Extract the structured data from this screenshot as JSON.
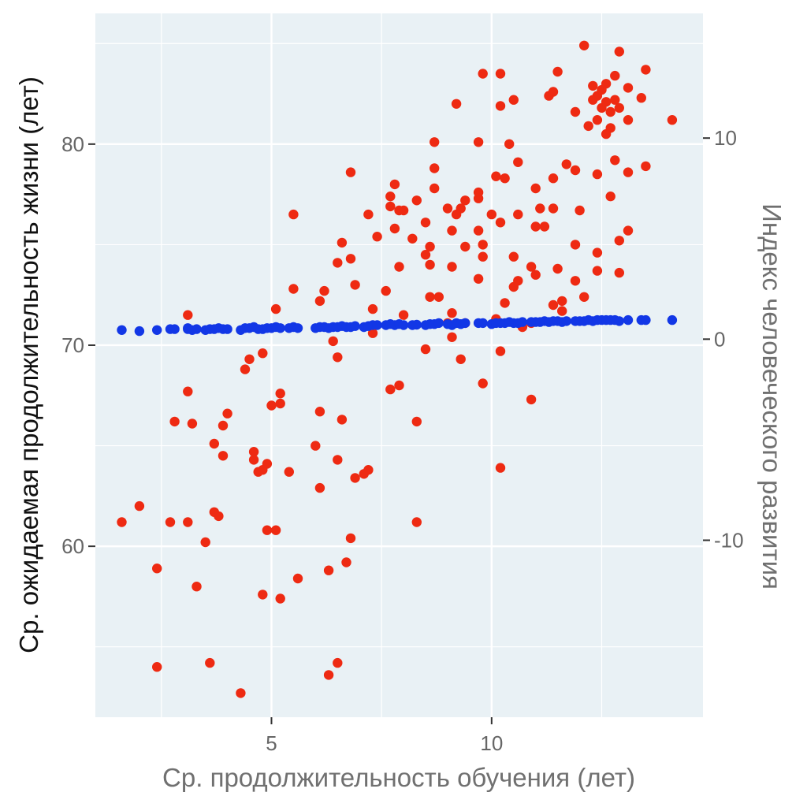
{
  "chart_data": {
    "type": "scatter",
    "title": "",
    "xlabel": "Ср. продолжительность обучения (лет)",
    "ylabel": "Ср. ожидаемая продолжительность жизни (лет)",
    "y2label": "Индекс человеческого развития",
    "xlim": [
      1.0,
      14.8
    ],
    "ylim": [
      51.5,
      86.5
    ],
    "y2lim": [
      -18.8,
      16.2
    ],
    "x_ticks": [
      5,
      10
    ],
    "y_ticks": [
      60,
      70,
      80
    ],
    "y2_ticks": [
      -10,
      0,
      10
    ],
    "x_tick_labels": [
      "5",
      "10"
    ],
    "y_tick_labels": [
      "60",
      "70",
      "80"
    ],
    "y2_tick_labels": [
      "-10",
      "0",
      "10"
    ],
    "grid": true,
    "legend": "none",
    "colors": {
      "panel_background": "#e9f1f5",
      "grid_line": "#ffffff",
      "life_expectancy": "#ee2a12",
      "hdi": "#1237e6",
      "tick_text": "#666666",
      "left_axis_title": "#111111",
      "right_axis_title": "#707070",
      "bottom_axis_title": "#707070"
    },
    "series": [
      {
        "axis": "left",
        "values": [
          [
            1.6,
            61.2
          ],
          [
            2.0,
            62.0
          ],
          [
            2.4,
            58.9
          ],
          [
            2.4,
            54.0
          ],
          [
            2.7,
            61.2
          ],
          [
            2.8,
            66.2
          ],
          [
            3.1,
            61.2
          ],
          [
            3.1,
            67.7
          ],
          [
            3.2,
            66.1
          ],
          [
            3.1,
            71.5
          ],
          [
            3.3,
            58.0
          ],
          [
            3.5,
            60.2
          ],
          [
            3.6,
            54.2
          ],
          [
            3.7,
            61.7
          ],
          [
            3.7,
            65.1
          ],
          [
            3.8,
            61.5
          ],
          [
            3.9,
            66.0
          ],
          [
            3.9,
            64.5
          ],
          [
            4.0,
            66.6
          ],
          [
            4.3,
            52.7
          ],
          [
            4.4,
            68.8
          ],
          [
            4.5,
            69.3
          ],
          [
            4.6,
            64.7
          ],
          [
            4.6,
            64.3
          ],
          [
            4.7,
            63.7
          ],
          [
            4.8,
            63.8
          ],
          [
            4.8,
            57.6
          ],
          [
            4.8,
            69.6
          ],
          [
            4.9,
            64.1
          ],
          [
            4.9,
            60.8
          ],
          [
            5.0,
            67.0
          ],
          [
            5.1,
            60.8
          ],
          [
            5.1,
            71.8
          ],
          [
            5.2,
            67.6
          ],
          [
            5.2,
            67.1
          ],
          [
            5.2,
            57.4
          ],
          [
            5.4,
            63.7
          ],
          [
            5.5,
            72.8
          ],
          [
            5.5,
            76.5
          ],
          [
            5.6,
            58.4
          ],
          [
            6.0,
            65.0
          ],
          [
            6.1,
            66.7
          ],
          [
            6.1,
            62.9
          ],
          [
            6.1,
            72.2
          ],
          [
            6.2,
            72.7
          ],
          [
            6.3,
            58.8
          ],
          [
            6.3,
            53.6
          ],
          [
            6.4,
            70.2
          ],
          [
            6.5,
            74.1
          ],
          [
            6.5,
            69.4
          ],
          [
            6.5,
            64.3
          ],
          [
            6.5,
            54.2
          ],
          [
            6.6,
            75.1
          ],
          [
            6.6,
            66.3
          ],
          [
            6.7,
            59.2
          ],
          [
            6.8,
            60.4
          ],
          [
            6.8,
            74.3
          ],
          [
            6.8,
            78.6
          ],
          [
            6.9,
            73.0
          ],
          [
            6.9,
            63.4
          ],
          [
            7.1,
            63.6
          ],
          [
            7.2,
            63.8
          ],
          [
            7.2,
            76.5
          ],
          [
            7.3,
            70.6
          ],
          [
            7.3,
            71.8
          ],
          [
            7.4,
            75.4
          ],
          [
            7.6,
            72.7
          ],
          [
            7.7,
            67.8
          ],
          [
            7.7,
            77.4
          ],
          [
            7.7,
            76.9
          ],
          [
            7.8,
            78.0
          ],
          [
            7.8,
            75.8
          ],
          [
            7.9,
            68.0
          ],
          [
            7.9,
            76.7
          ],
          [
            7.9,
            73.9
          ],
          [
            8.0,
            76.7
          ],
          [
            8.0,
            71.5
          ],
          [
            8.2,
            75.3
          ],
          [
            8.3,
            77.2
          ],
          [
            8.3,
            66.2
          ],
          [
            8.3,
            61.2
          ],
          [
            8.5,
            69.8
          ],
          [
            8.5,
            74.5
          ],
          [
            8.5,
            76.1
          ],
          [
            8.6,
            74.9
          ],
          [
            8.6,
            72.4
          ],
          [
            8.6,
            74.0
          ],
          [
            8.7,
            77.8
          ],
          [
            8.7,
            78.8
          ],
          [
            8.7,
            80.1
          ],
          [
            8.8,
            72.4
          ],
          [
            9.0,
            76.8
          ],
          [
            9.0,
            71.1
          ],
          [
            9.1,
            75.7
          ],
          [
            9.1,
            71.6
          ],
          [
            9.1,
            73.9
          ],
          [
            9.1,
            70.4
          ],
          [
            9.2,
            76.5
          ],
          [
            9.2,
            82.0
          ],
          [
            9.3,
            69.3
          ],
          [
            9.3,
            76.8
          ],
          [
            9.4,
            77.2
          ],
          [
            9.4,
            74.9
          ],
          [
            9.4,
            71.1
          ],
          [
            9.7,
            80.1
          ],
          [
            9.7,
            77.3
          ],
          [
            9.7,
            77.6
          ],
          [
            9.7,
            75.7
          ],
          [
            9.7,
            73.3
          ],
          [
            9.8,
            75.0
          ],
          [
            9.8,
            74.4
          ],
          [
            9.8,
            83.5
          ],
          [
            9.8,
            68.1
          ],
          [
            10.0,
            76.5
          ],
          [
            10.1,
            78.4
          ],
          [
            10.1,
            71.3
          ],
          [
            10.2,
            69.7
          ],
          [
            10.2,
            63.9
          ],
          [
            10.2,
            81.9
          ],
          [
            10.2,
            83.5
          ],
          [
            10.2,
            76.1
          ],
          [
            10.3,
            78.3
          ],
          [
            10.3,
            72.1
          ],
          [
            10.4,
            80.0
          ],
          [
            10.5,
            82.2
          ],
          [
            10.5,
            74.4
          ],
          [
            10.5,
            72.9
          ],
          [
            10.6,
            73.2
          ],
          [
            10.6,
            76.5
          ],
          [
            10.6,
            79.1
          ],
          [
            10.7,
            70.9
          ],
          [
            10.9,
            71.1
          ],
          [
            10.9,
            67.3
          ],
          [
            10.9,
            73.9
          ],
          [
            11.0,
            75.9
          ],
          [
            11.0,
            73.5
          ],
          [
            11.0,
            77.8
          ],
          [
            11.1,
            76.8
          ],
          [
            11.2,
            75.9
          ],
          [
            11.3,
            82.4
          ],
          [
            11.4,
            72.0
          ],
          [
            11.4,
            82.6
          ],
          [
            11.4,
            78.3
          ],
          [
            11.4,
            76.8
          ],
          [
            11.5,
            83.6
          ],
          [
            11.5,
            73.8
          ],
          [
            11.6,
            71.7
          ],
          [
            11.6,
            72.2
          ],
          [
            11.7,
            79.0
          ],
          [
            11.9,
            73.2
          ],
          [
            11.9,
            75.0
          ],
          [
            11.9,
            78.7
          ],
          [
            11.9,
            81.6
          ],
          [
            12.0,
            76.7
          ],
          [
            12.1,
            72.4
          ],
          [
            12.1,
            84.9
          ],
          [
            12.2,
            80.9
          ],
          [
            12.3,
            82.2
          ],
          [
            12.3,
            82.9
          ],
          [
            12.4,
            73.7
          ],
          [
            12.4,
            74.6
          ],
          [
            12.4,
            78.5
          ],
          [
            12.4,
            81.2
          ],
          [
            12.4,
            82.4
          ],
          [
            12.5,
            81.8
          ],
          [
            12.5,
            82.7
          ],
          [
            12.6,
            80.5
          ],
          [
            12.6,
            83.0
          ],
          [
            12.6,
            82.1
          ],
          [
            12.7,
            80.8
          ],
          [
            12.7,
            81.6
          ],
          [
            12.7,
            77.4
          ],
          [
            12.8,
            82.2
          ],
          [
            12.8,
            83.4
          ],
          [
            12.8,
            79.2
          ],
          [
            12.9,
            73.6
          ],
          [
            12.9,
            75.2
          ],
          [
            12.9,
            84.6
          ],
          [
            12.9,
            81.8
          ],
          [
            13.1,
            81.2
          ],
          [
            13.1,
            78.6
          ],
          [
            13.1,
            75.7
          ],
          [
            13.1,
            82.8
          ],
          [
            13.4,
            82.3
          ],
          [
            13.5,
            78.9
          ],
          [
            13.5,
            83.7
          ],
          [
            14.1,
            81.2
          ]
        ]
      },
      {
        "axis": "right",
        "values": [
          [
            1.6,
            0.45
          ],
          [
            2.0,
            0.4
          ],
          [
            2.4,
            0.45
          ],
          [
            2.7,
            0.5
          ],
          [
            2.8,
            0.5
          ],
          [
            3.1,
            0.5
          ],
          [
            3.1,
            0.55
          ],
          [
            3.2,
            0.45
          ],
          [
            3.3,
            0.5
          ],
          [
            3.5,
            0.45
          ],
          [
            3.6,
            0.5
          ],
          [
            3.7,
            0.5
          ],
          [
            3.8,
            0.55
          ],
          [
            3.9,
            0.5
          ],
          [
            4.0,
            0.5
          ],
          [
            4.3,
            0.45
          ],
          [
            4.4,
            0.55
          ],
          [
            4.5,
            0.55
          ],
          [
            4.6,
            0.6
          ],
          [
            4.7,
            0.5
          ],
          [
            4.8,
            0.5
          ],
          [
            4.9,
            0.55
          ],
          [
            5.0,
            0.55
          ],
          [
            5.1,
            0.6
          ],
          [
            5.2,
            0.55
          ],
          [
            5.4,
            0.55
          ],
          [
            5.5,
            0.6
          ],
          [
            5.6,
            0.55
          ],
          [
            6.0,
            0.55
          ],
          [
            6.1,
            0.6
          ],
          [
            6.2,
            0.6
          ],
          [
            6.3,
            0.55
          ],
          [
            6.4,
            0.6
          ],
          [
            6.5,
            0.6
          ],
          [
            6.6,
            0.65
          ],
          [
            6.7,
            0.6
          ],
          [
            6.8,
            0.6
          ],
          [
            6.9,
            0.65
          ],
          [
            7.1,
            0.6
          ],
          [
            7.2,
            0.65
          ],
          [
            7.3,
            0.7
          ],
          [
            7.4,
            0.7
          ],
          [
            7.6,
            0.7
          ],
          [
            7.7,
            0.75
          ],
          [
            7.8,
            0.7
          ],
          [
            7.9,
            0.75
          ],
          [
            8.0,
            0.7
          ],
          [
            8.2,
            0.7
          ],
          [
            8.3,
            0.72
          ],
          [
            8.5,
            0.7
          ],
          [
            8.6,
            0.75
          ],
          [
            8.7,
            0.75
          ],
          [
            8.8,
            0.8
          ],
          [
            9.0,
            0.75
          ],
          [
            9.1,
            0.7
          ],
          [
            9.2,
            0.8
          ],
          [
            9.3,
            0.75
          ],
          [
            9.4,
            0.8
          ],
          [
            9.7,
            0.8
          ],
          [
            9.8,
            0.8
          ],
          [
            10.0,
            0.75
          ],
          [
            10.1,
            0.8
          ],
          [
            10.2,
            0.8
          ],
          [
            10.3,
            0.8
          ],
          [
            10.4,
            0.85
          ],
          [
            10.5,
            0.8
          ],
          [
            10.6,
            0.8
          ],
          [
            10.7,
            0.85
          ],
          [
            10.9,
            0.85
          ],
          [
            11.0,
            0.85
          ],
          [
            11.1,
            0.85
          ],
          [
            11.2,
            0.9
          ],
          [
            11.3,
            0.85
          ],
          [
            11.4,
            0.9
          ],
          [
            11.5,
            0.9
          ],
          [
            11.6,
            0.85
          ],
          [
            11.7,
            0.9
          ],
          [
            11.9,
            0.9
          ],
          [
            12.0,
            0.9
          ],
          [
            12.1,
            0.9
          ],
          [
            12.2,
            0.95
          ],
          [
            12.3,
            0.9
          ],
          [
            12.4,
            0.95
          ],
          [
            12.5,
            0.95
          ],
          [
            12.6,
            0.95
          ],
          [
            12.7,
            0.95
          ],
          [
            12.8,
            0.95
          ],
          [
            12.9,
            0.9
          ],
          [
            13.1,
            0.95
          ],
          [
            13.4,
            0.95
          ],
          [
            13.5,
            0.95
          ],
          [
            14.1,
            0.95
          ]
        ]
      }
    ]
  }
}
